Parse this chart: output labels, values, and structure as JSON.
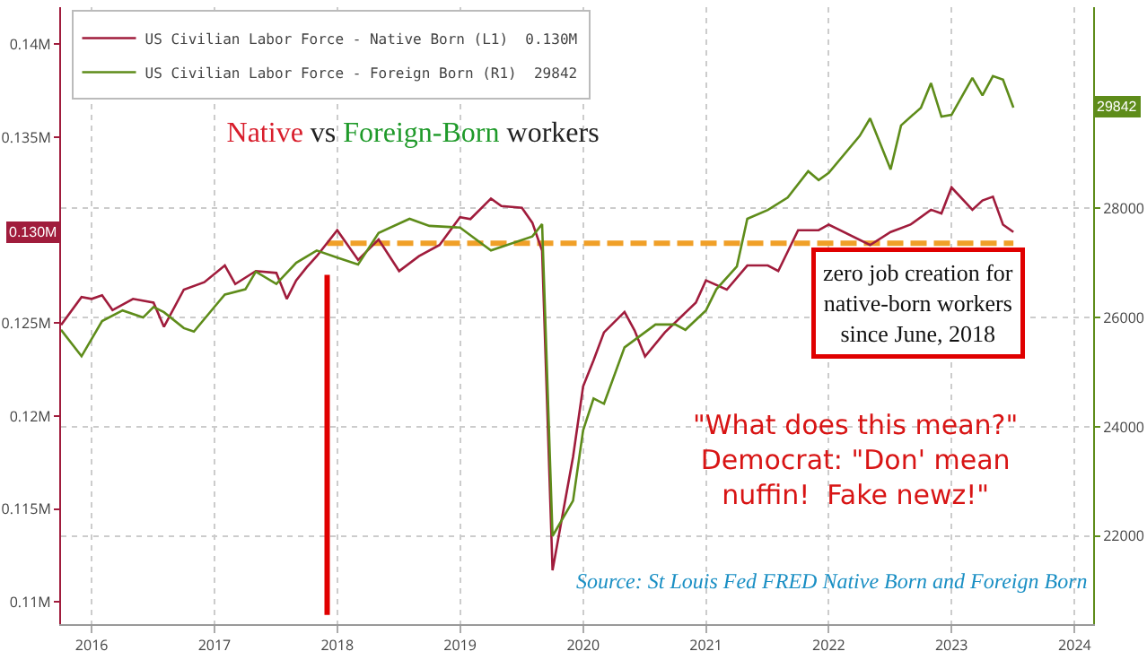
{
  "chart_data": {
    "type": "line",
    "title": "Native vs Foreign-Born workers",
    "annotations": [
      "zero job creation for native-born workers since June, 2018",
      "\"What does this mean?\" Democrat: \"Don' mean nuffin!  Fake newz!\"",
      "Source: St Louis Fed FRED Native Born and Foreign Born",
      "0.130M",
      "29842"
    ],
    "xlim": [
      "2016-04-01",
      "2024-08-25"
    ],
    "xticks": [
      {
        "value": "2016-07-01",
        "label": "2016"
      },
      {
        "value": "2017-07-01",
        "label": "2017"
      },
      {
        "value": "2018-07-01",
        "label": "2018"
      },
      {
        "value": "2019-07-01",
        "label": "2019"
      },
      {
        "value": "2020-07-01",
        "label": "2020"
      },
      {
        "value": "2021-07-01",
        "label": "2021"
      },
      {
        "value": "2022-07-01",
        "label": "2022"
      },
      {
        "value": "2023-07-01",
        "label": "2023"
      },
      {
        "value": "2024-07-01",
        "label": "2024"
      }
    ],
    "ylim": [
      0.1088,
      0.142
    ],
    "yticks": [
      {
        "value": 0.14,
        "label": "0.14M"
      },
      {
        "value": 0.135,
        "label": "0.135M"
      },
      {
        "value": 0.125,
        "label": "0.125M"
      },
      {
        "value": 0.12,
        "label": "0.12M"
      },
      {
        "value": 0.115,
        "label": "0.115M"
      },
      {
        "value": 0.11,
        "label": "0.11M"
      }
    ],
    "y2lim": [
      20387,
      31680
    ],
    "y2ticks": [
      22000,
      24000,
      26000,
      28000
    ],
    "grid": true,
    "legend": "top left",
    "series": [
      {
        "name": "US Civilian Labor Force - Native Born (L1)  0.130M",
        "color": "#a01c3c",
        "x": [
          "2016-04",
          "2016-06",
          "2016-07",
          "2016-08",
          "2016-09",
          "2016-11",
          "2017-01",
          "2017-02",
          "2017-04",
          "2017-06",
          "2017-08",
          "2017-09",
          "2017-11",
          "2018-01",
          "2018-02",
          "2018-03",
          "2018-04",
          "2018-05",
          "2018-07",
          "2018-09",
          "2018-11",
          "2019-01",
          "2019-03",
          "2019-05",
          "2019-07",
          "2019-08",
          "2019-10",
          "2019-11",
          "2020-01",
          "2020-02",
          "2020-03",
          "2020-04",
          "2020-06",
          "2020-07",
          "2020-08",
          "2020-09",
          "2020-11",
          "2020-12",
          "2021-01",
          "2021-03",
          "2021-06",
          "2021-07",
          "2021-09",
          "2021-11",
          "2022-01",
          "2022-02",
          "2022-04",
          "2022-06",
          "2022-07",
          "2022-11",
          "2023-01",
          "2023-03",
          "2023-05",
          "2023-06",
          "2023-07",
          "2023-09",
          "2023-10",
          "2023-11",
          "2023-12",
          "2024-01"
        ],
        "values": [
          0.1249,
          0.1264,
          0.1263,
          0.1265,
          0.1257,
          0.1263,
          0.1261,
          0.1248,
          0.1268,
          0.1272,
          0.1281,
          0.1271,
          0.1278,
          0.1277,
          0.1263,
          0.1273,
          0.128,
          0.1286,
          0.13,
          0.1284,
          0.1295,
          0.1278,
          0.1286,
          0.1292,
          0.1307,
          0.1306,
          0.1317,
          0.1313,
          0.1312,
          0.1304,
          0.1289,
          0.1117,
          0.1178,
          0.1216,
          0.123,
          0.1245,
          0.1256,
          0.1246,
          0.1232,
          0.1245,
          0.1261,
          0.1273,
          0.1268,
          0.1281,
          0.1281,
          0.1278,
          0.13,
          0.13,
          0.1303,
          0.1292,
          0.1299,
          0.1303,
          0.1311,
          0.1309,
          0.1323,
          0.1311,
          0.1316,
          0.1318,
          0.1303,
          0.1299
        ]
      },
      {
        "name": "US Civilian Labor Force - Foreign Born (R1)  29842",
        "color": "#5e8c1a",
        "axis": "y2",
        "x": [
          "2016-04",
          "2016-06",
          "2016-08",
          "2016-10",
          "2016-12",
          "2017-01",
          "2017-02",
          "2017-04",
          "2017-05",
          "2017-07",
          "2017-08",
          "2017-10",
          "2017-11",
          "2018-01",
          "2018-03",
          "2018-05",
          "2018-07",
          "2018-09",
          "2018-11",
          "2019-02",
          "2019-04",
          "2019-07",
          "2019-10",
          "2020-02",
          "2020-03",
          "2020-04",
          "2020-06",
          "2020-07",
          "2020-08",
          "2020-09",
          "2020-11",
          "2021-02",
          "2021-04",
          "2021-05",
          "2021-07",
          "2021-08",
          "2021-10",
          "2021-11",
          "2022-01",
          "2022-03",
          "2022-05",
          "2022-06",
          "2022-07",
          "2022-10",
          "2022-11",
          "2023-01",
          "2023-02",
          "2023-04",
          "2023-05",
          "2023-06",
          "2023-07",
          "2023-09",
          "2023-10",
          "2023-11",
          "2023-12",
          "2024-01"
        ],
        "values": [
          25774,
          25290,
          25935,
          26129,
          26000,
          26194,
          26097,
          25806,
          25742,
          26194,
          26419,
          26516,
          26839,
          26613,
          27000,
          27226,
          27097,
          26968,
          27548,
          27806,
          27677,
          27645,
          27226,
          27484,
          27709,
          22000,
          22645,
          23935,
          24516,
          24420,
          25452,
          25871,
          25871,
          25774,
          26129,
          26516,
          26935,
          27806,
          27968,
          28194,
          28677,
          28516,
          28645,
          29323,
          29645,
          28710,
          29516,
          29839,
          30290,
          29677,
          29710,
          30387,
          30065,
          30419,
          30355,
          29842
        ]
      },
      {
        "type": "line",
        "color": "#f0a028",
        "line_style": "dashed",
        "x": [
          "2018-06",
          "2024-01"
        ],
        "values": [
          0.1293,
          0.1293
        ]
      },
      {
        "type": "line",
        "color": "#e00000",
        "x": [
          "2018-06",
          "2018-06"
        ],
        "values": [
          0.1093,
          0.1276
        ]
      }
    ]
  }
}
